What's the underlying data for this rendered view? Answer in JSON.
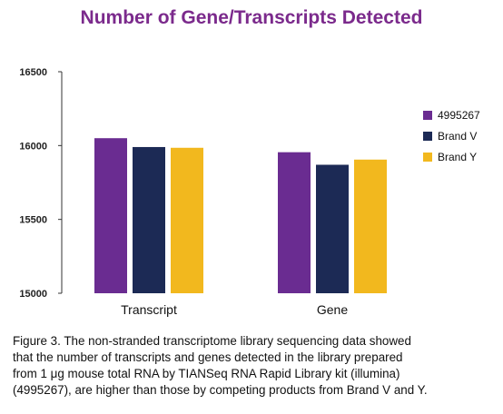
{
  "chart_data": {
    "type": "bar",
    "title": "Number of Gene/Transcripts Detected",
    "categories": [
      "Transcript",
      "Gene"
    ],
    "series": [
      {
        "name": "4995267",
        "color": "#6a2c91",
        "values": [
          16050,
          15955
        ]
      },
      {
        "name": "Brand V",
        "color": "#1c2a55",
        "values": [
          15990,
          15870
        ]
      },
      {
        "name": "Brand Y",
        "color": "#f2b81e",
        "values": [
          15985,
          15905
        ]
      }
    ],
    "ylim": [
      15000,
      16500
    ],
    "yticks": [
      "15000",
      "15500",
      "16000",
      "16500"
    ],
    "grid": false,
    "legend": "right"
  },
  "caption": {
    "lines": [
      "Figure 3. The non-stranded transcriptome library sequencing data showed",
      "that the number of transcripts and genes detected in the library prepared",
      "from 1 μg mouse total RNA by TIANSeq RNA Rapid Library kit (illumina)",
      "(4995267), are higher than those by competing products from Brand V and Y."
    ]
  }
}
